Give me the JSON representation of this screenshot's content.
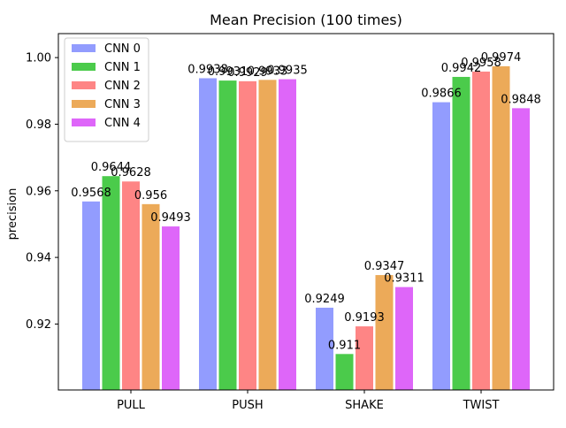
{
  "chart_data": {
    "type": "bar",
    "title": "Mean Precision (100 times)",
    "xlabel": "",
    "ylabel": "precision",
    "categories": [
      "PULL",
      "PUSH",
      "SHAKE",
      "TWIST"
    ],
    "ylim": [
      0.9002,
      1.0072
    ],
    "yticks": [
      "0.92",
      "0.94",
      "0.96",
      "0.98",
      "1.00"
    ],
    "ytick_values": [
      0.92,
      0.94,
      0.96,
      0.98,
      1.0
    ],
    "legend_position": "upper-left",
    "grid": false,
    "series": [
      {
        "name": "CNN 0",
        "color": "#929cfe",
        "values": [
          0.9568,
          0.9938,
          0.9249,
          0.9866
        ],
        "labels": [
          "0.9568",
          "0.9938",
          "0.9249",
          "0.9866"
        ]
      },
      {
        "name": "CNN 1",
        "color": "#4bcb4b",
        "values": [
          0.9644,
          0.9931,
          0.911,
          0.9942
        ],
        "labels": [
          "0.9644",
          "0.9931",
          "0.911",
          "0.9942"
        ]
      },
      {
        "name": "CNN 2",
        "color": "#fe8585",
        "values": [
          0.9628,
          0.9929,
          0.9193,
          0.9958
        ],
        "labels": [
          "0.9628",
          "0.9929",
          "0.9193",
          "0.9958"
        ]
      },
      {
        "name": "CNN 3",
        "color": "#ecaa59",
        "values": [
          0.956,
          0.9933,
          0.9347,
          0.9974
        ],
        "labels": [
          "0.956",
          "0.9933",
          "0.9347",
          "0.9974"
        ]
      },
      {
        "name": "CNN 4",
        "color": "#de66f9",
        "values": [
          0.9493,
          0.9935,
          0.9311,
          0.9848
        ],
        "labels": [
          "0.9493",
          "0.9935",
          "0.9311",
          "0.9848"
        ]
      }
    ]
  }
}
